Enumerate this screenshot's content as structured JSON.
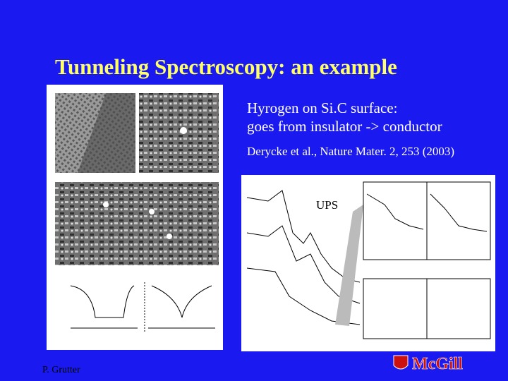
{
  "slide": {
    "title": "Tunneling Spectroscopy: an example",
    "body_lines": [
      "Hyrogen on Si.C surface:",
      "goes from insulator -> conductor"
    ],
    "reference": "Derycke et al., Nature Mater. 2, 253 (2003)",
    "figure_label": "UPS",
    "footer": "P. Grutter",
    "logo": "McGill"
  }
}
